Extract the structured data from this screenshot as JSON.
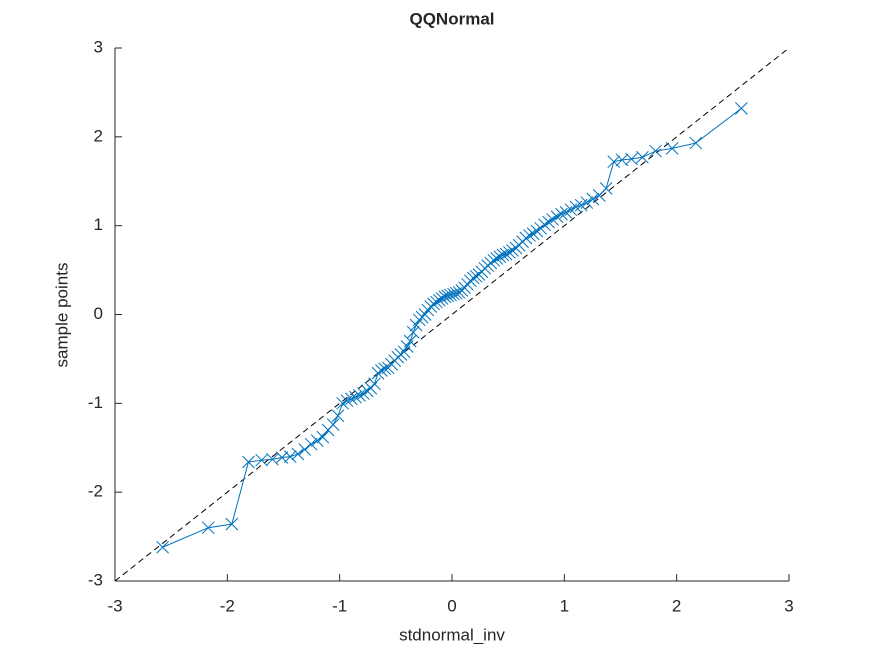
{
  "chart_data": {
    "type": "scatter",
    "title": "QQNormal",
    "x_label": "stdnormal_inv",
    "y_label": "sample points",
    "xlim": [
      -3,
      3
    ],
    "ylim": [
      -3,
      3
    ],
    "xticks": [
      -3,
      -2,
      -1,
      0,
      1,
      2,
      3
    ],
    "yticks": [
      -3,
      -2,
      -1,
      0,
      1,
      2,
      3
    ],
    "series": [
      {
        "color": "#0072bd",
        "x": [
          -2.576,
          -2.17,
          -1.96,
          -1.812,
          -1.695,
          -1.598,
          -1.514,
          -1.44,
          -1.372,
          -1.311,
          -1.254,
          -1.2,
          -1.15,
          -1.103,
          -1.058,
          -1.015,
          -0.974,
          -0.935,
          -0.896,
          -0.86,
          -0.824,
          -0.789,
          -0.755,
          -0.722,
          -0.69,
          -0.659,
          -0.628,
          -0.598,
          -0.568,
          -0.539,
          -0.51,
          -0.482,
          -0.454,
          -0.426,
          -0.399,
          -0.372,
          -0.345,
          -0.319,
          -0.292,
          -0.266,
          -0.24,
          -0.215,
          -0.189,
          -0.164,
          -0.138,
          -0.113,
          -0.088,
          -0.063,
          -0.038,
          -0.013,
          0.013,
          0.038,
          0.063,
          0.088,
          0.113,
          0.138,
          0.164,
          0.189,
          0.215,
          0.24,
          0.266,
          0.292,
          0.319,
          0.345,
          0.372,
          0.399,
          0.426,
          0.454,
          0.482,
          0.51,
          0.539,
          0.568,
          0.598,
          0.628,
          0.659,
          0.69,
          0.722,
          0.755,
          0.789,
          0.824,
          0.86,
          0.896,
          0.935,
          0.974,
          1.015,
          1.058,
          1.103,
          1.15,
          1.2,
          1.254,
          1.311,
          1.372,
          1.44,
          1.514,
          1.598,
          1.695,
          1.812,
          1.96,
          2.17,
          2.576
        ],
        "values": [
          -2.62,
          -2.4,
          -2.36,
          -1.66,
          -1.64,
          -1.63,
          -1.61,
          -1.6,
          -1.57,
          -1.52,
          -1.46,
          -1.42,
          -1.38,
          -1.3,
          -1.24,
          -1.14,
          -1.0,
          -0.97,
          -0.95,
          -0.93,
          -0.91,
          -0.89,
          -0.86,
          -0.83,
          -0.78,
          -0.66,
          -0.63,
          -0.61,
          -0.6,
          -0.56,
          -0.52,
          -0.48,
          -0.45,
          -0.42,
          -0.36,
          -0.3,
          -0.2,
          -0.12,
          -0.06,
          -0.03,
          0.0,
          0.05,
          0.09,
          0.12,
          0.14,
          0.16,
          0.18,
          0.2,
          0.21,
          0.22,
          0.23,
          0.24,
          0.25,
          0.27,
          0.3,
          0.34,
          0.38,
          0.41,
          0.43,
          0.45,
          0.48,
          0.52,
          0.55,
          0.58,
          0.61,
          0.63,
          0.65,
          0.67,
          0.68,
          0.7,
          0.72,
          0.75,
          0.78,
          0.82,
          0.86,
          0.89,
          0.91,
          0.94,
          0.97,
          1.01,
          1.04,
          1.07,
          1.1,
          1.13,
          1.15,
          1.18,
          1.21,
          1.23,
          1.26,
          1.3,
          1.34,
          1.42,
          1.72,
          1.74,
          1.75,
          1.77,
          1.84,
          1.87,
          1.93,
          2.32
        ]
      }
    ]
  }
}
